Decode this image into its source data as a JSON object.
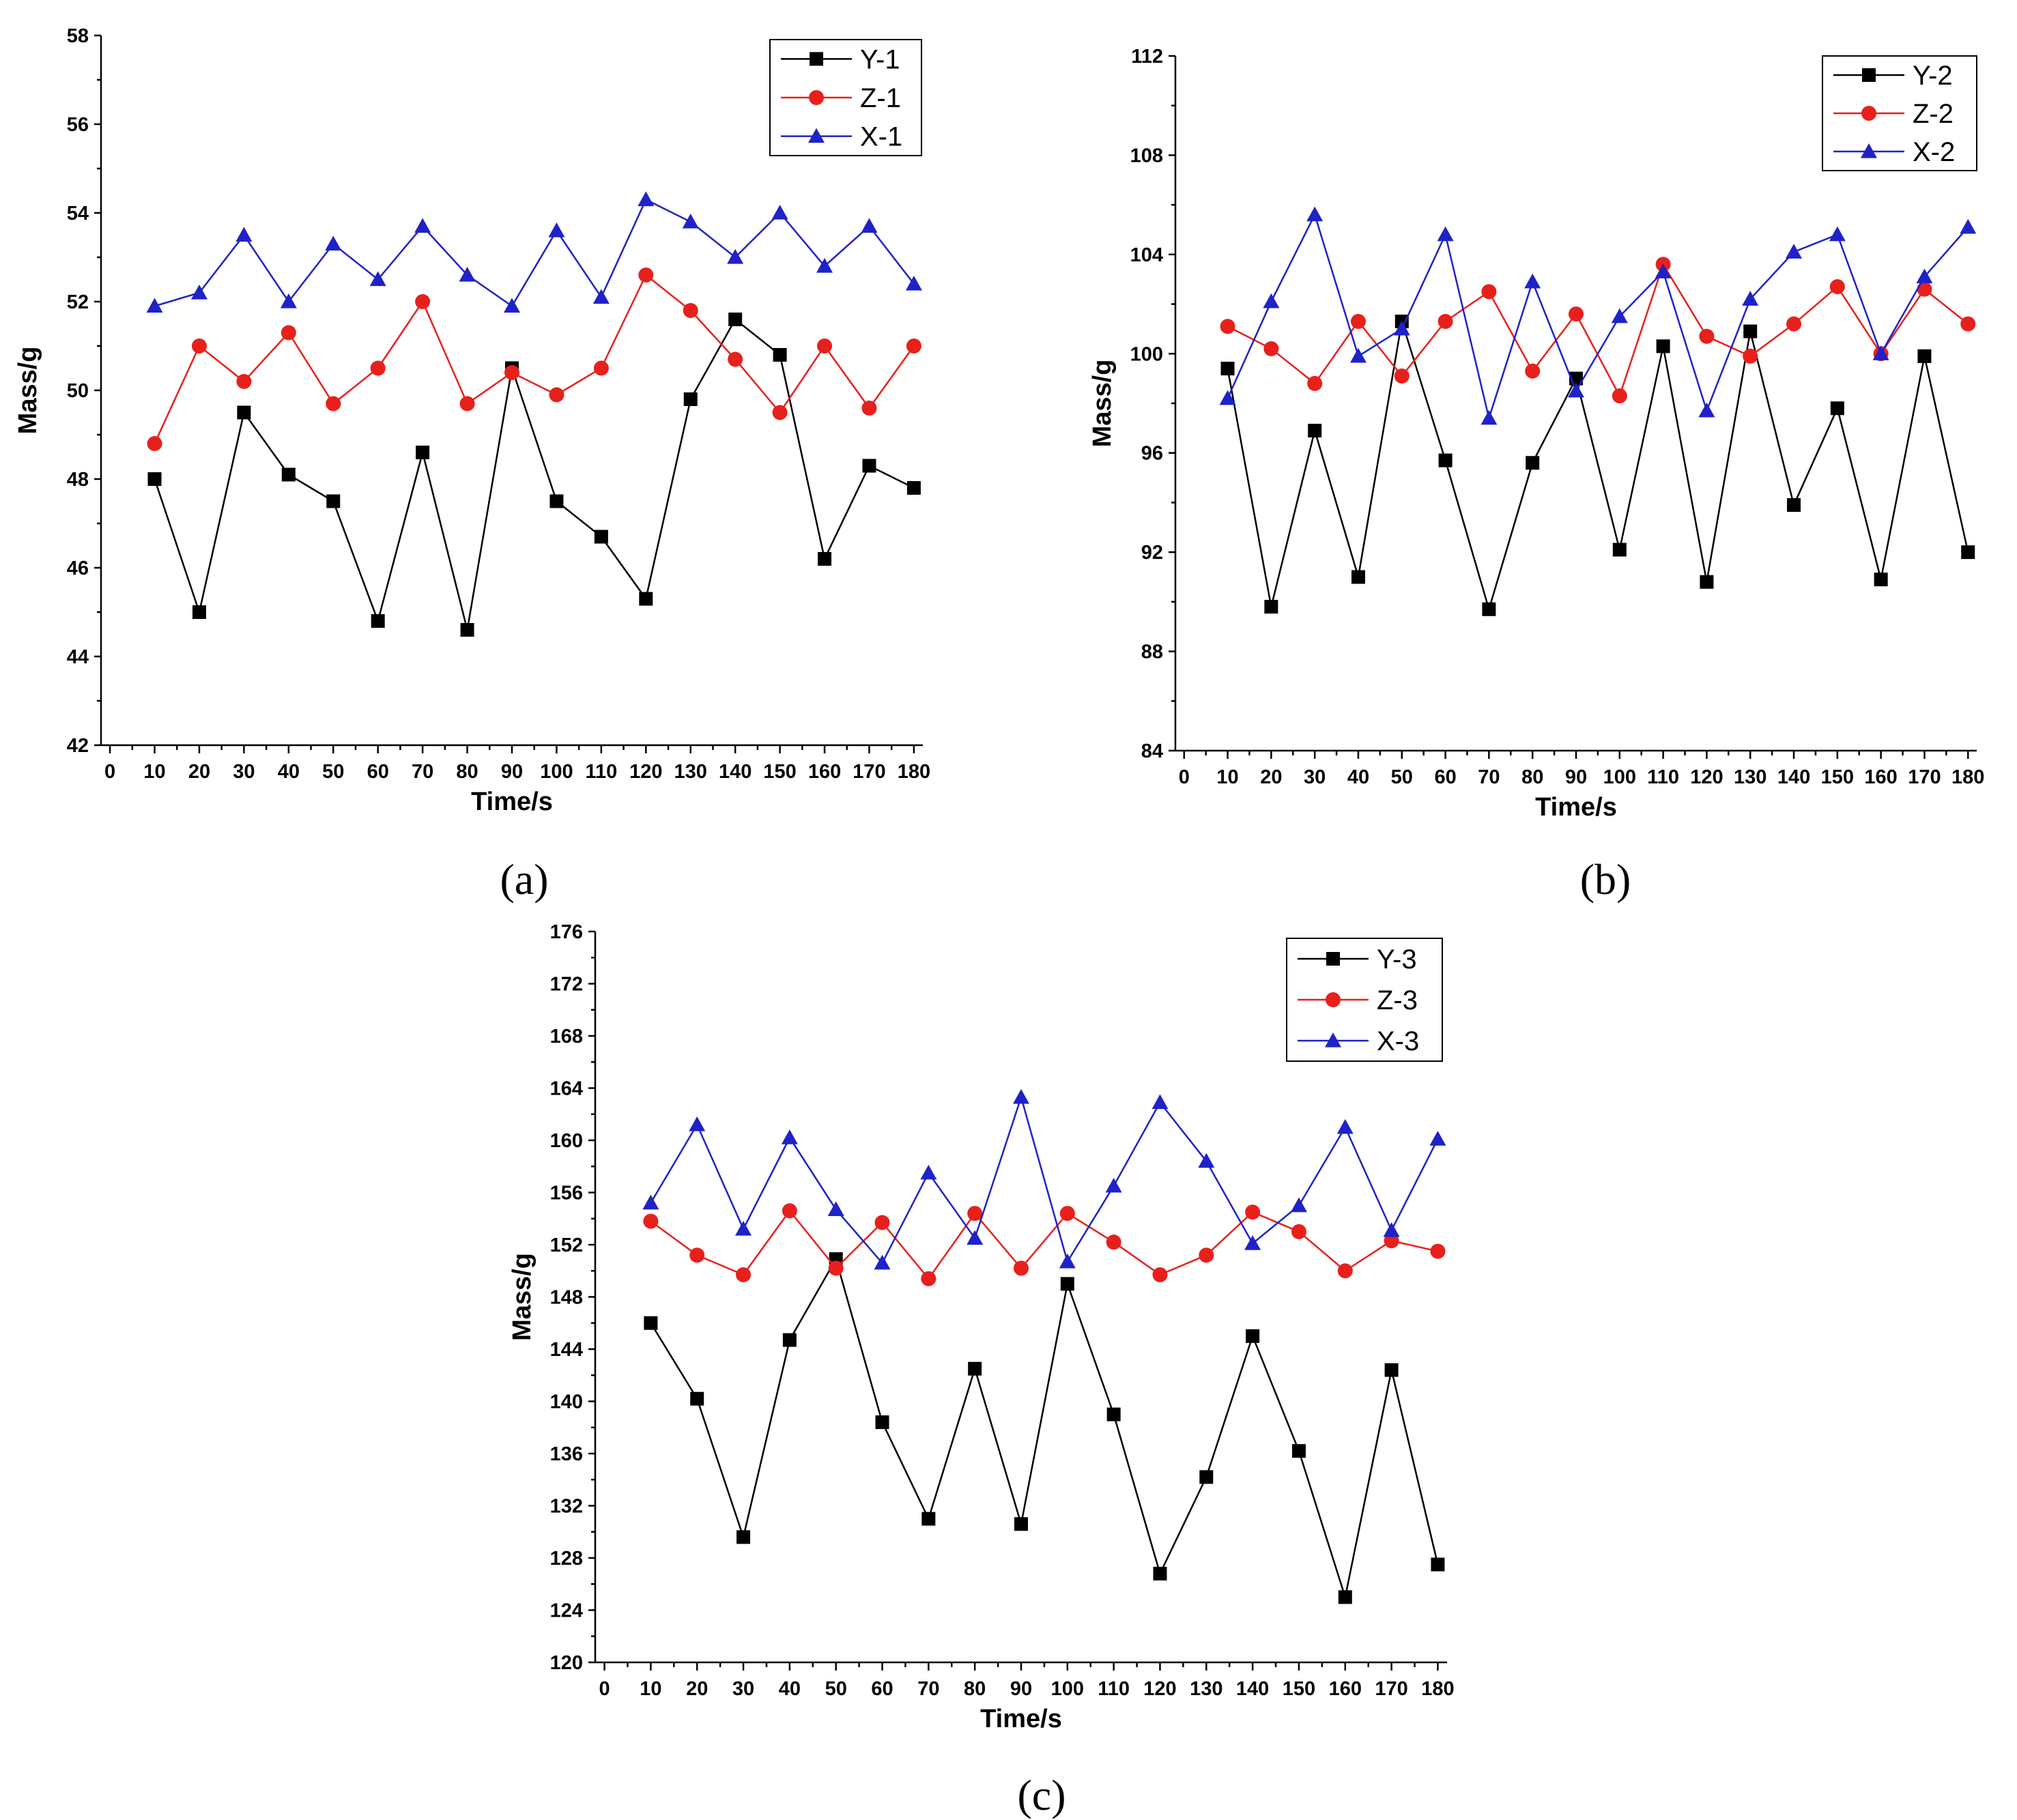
{
  "chart_data": [
    {
      "type": "line",
      "panel_label": "(a)",
      "xlabel": "Time/s",
      "ylabel": "Mass/g",
      "x_ticks": [
        "0",
        "10",
        "20",
        "30",
        "40",
        "50",
        "60",
        "70",
        "80",
        "90",
        "100",
        "110",
        "120",
        "130",
        "140",
        "150",
        "160",
        "170",
        "180"
      ],
      "y_ticks": [
        "42",
        "44",
        "46",
        "48",
        "50",
        "52",
        "54",
        "56",
        "58"
      ],
      "xlim": [
        -2,
        182
      ],
      "ylim": [
        42,
        58
      ],
      "legend_position": "top-right",
      "x": [
        10,
        20,
        30,
        40,
        50,
        60,
        70,
        80,
        90,
        100,
        110,
        120,
        130,
        140,
        150,
        160,
        170,
        180
      ],
      "series": [
        {
          "name": "Y-1",
          "color": "#000000",
          "marker": "square",
          "values": [
            48.0,
            45.0,
            49.5,
            48.1,
            47.5,
            44.8,
            48.6,
            44.6,
            50.5,
            47.5,
            46.7,
            45.3,
            49.8,
            51.6,
            50.8,
            46.2,
            48.3,
            47.8
          ]
        },
        {
          "name": "Z-1",
          "color": "#e8201c",
          "marker": "circle",
          "values": [
            48.8,
            51.0,
            50.2,
            51.3,
            49.7,
            50.5,
            52.0,
            49.7,
            50.4,
            49.9,
            50.5,
            52.6,
            51.8,
            50.7,
            49.5,
            51.0,
            49.6,
            51.0
          ]
        },
        {
          "name": "X-1",
          "color": "#1f22c8",
          "marker": "triangle",
          "values": [
            51.9,
            52.2,
            53.5,
            52.0,
            53.3,
            52.5,
            53.7,
            52.6,
            51.9,
            53.6,
            52.1,
            54.3,
            53.8,
            53.0,
            54.0,
            52.8,
            53.7,
            52.4
          ]
        }
      ]
    },
    {
      "type": "line",
      "panel_label": "(b)",
      "xlabel": "Time/s",
      "ylabel": "Mass/g",
      "x_ticks": [
        "0",
        "10",
        "20",
        "30",
        "40",
        "50",
        "60",
        "70",
        "80",
        "90",
        "100",
        "110",
        "120",
        "130",
        "140",
        "150",
        "160",
        "170",
        "180"
      ],
      "y_ticks": [
        "84",
        "88",
        "92",
        "96",
        "100",
        "104",
        "108",
        "112"
      ],
      "xlim": [
        -2,
        182
      ],
      "ylim": [
        84,
        112
      ],
      "legend_position": "top-right",
      "x": [
        10,
        20,
        30,
        40,
        50,
        60,
        70,
        80,
        90,
        100,
        110,
        120,
        130,
        140,
        150,
        160,
        170,
        180
      ],
      "series": [
        {
          "name": "Y-2",
          "color": "#000000",
          "marker": "square",
          "values": [
            99.4,
            89.8,
            96.9,
            91.0,
            101.3,
            95.7,
            89.7,
            95.6,
            99.0,
            92.1,
            100.3,
            90.8,
            100.9,
            93.9,
            97.8,
            90.9,
            99.9,
            92.0
          ]
        },
        {
          "name": "Z-2",
          "color": "#e8201c",
          "marker": "circle",
          "values": [
            101.1,
            100.2,
            98.8,
            101.3,
            99.1,
            101.3,
            102.5,
            99.3,
            101.6,
            98.3,
            103.6,
            100.7,
            99.9,
            101.2,
            102.7,
            100.0,
            102.6,
            101.2
          ]
        },
        {
          "name": "X-2",
          "color": "#1f22c8",
          "marker": "triangle",
          "values": [
            98.2,
            102.1,
            105.6,
            99.9,
            101.0,
            104.8,
            97.4,
            102.9,
            98.5,
            101.5,
            103.3,
            97.7,
            102.2,
            104.1,
            104.8,
            100.0,
            103.1,
            105.1
          ]
        }
      ]
    },
    {
      "type": "line",
      "panel_label": "(c)",
      "xlabel": "Time/s",
      "ylabel": "Mass/g",
      "x_ticks": [
        "0",
        "10",
        "20",
        "30",
        "40",
        "50",
        "60",
        "70",
        "80",
        "90",
        "100",
        "110",
        "120",
        "130",
        "140",
        "150",
        "160",
        "170",
        "180"
      ],
      "y_ticks": [
        "120",
        "124",
        "128",
        "132",
        "136",
        "140",
        "144",
        "148",
        "152",
        "156",
        "160",
        "164",
        "168",
        "172",
        "176"
      ],
      "xlim": [
        -2,
        182
      ],
      "ylim": [
        120,
        176
      ],
      "legend_position": "top-right",
      "x": [
        10,
        20,
        30,
        40,
        50,
        60,
        70,
        80,
        90,
        100,
        110,
        120,
        130,
        140,
        150,
        160,
        170,
        180
      ],
      "series": [
        {
          "name": "Y-3",
          "color": "#000000",
          "marker": "square",
          "values": [
            146.0,
            140.2,
            129.6,
            144.7,
            150.9,
            138.4,
            131.0,
            142.5,
            130.6,
            149.0,
            139.0,
            126.8,
            134.2,
            145.0,
            136.2,
            125.0,
            142.4,
            127.5
          ]
        },
        {
          "name": "Z-3",
          "color": "#e8201c",
          "marker": "circle",
          "values": [
            153.8,
            151.2,
            149.7,
            154.6,
            150.2,
            153.7,
            149.4,
            154.4,
            150.2,
            154.4,
            152.2,
            149.7,
            151.2,
            154.5,
            153.0,
            150.0,
            152.3,
            151.5
          ]
        },
        {
          "name": "X-3",
          "color": "#1f22c8",
          "marker": "triangle",
          "values": [
            155.2,
            161.2,
            153.2,
            160.2,
            154.7,
            150.6,
            157.5,
            152.5,
            163.3,
            150.7,
            156.5,
            162.9,
            158.4,
            152.1,
            155.0,
            161.0,
            153.1,
            160.1
          ]
        }
      ]
    }
  ]
}
